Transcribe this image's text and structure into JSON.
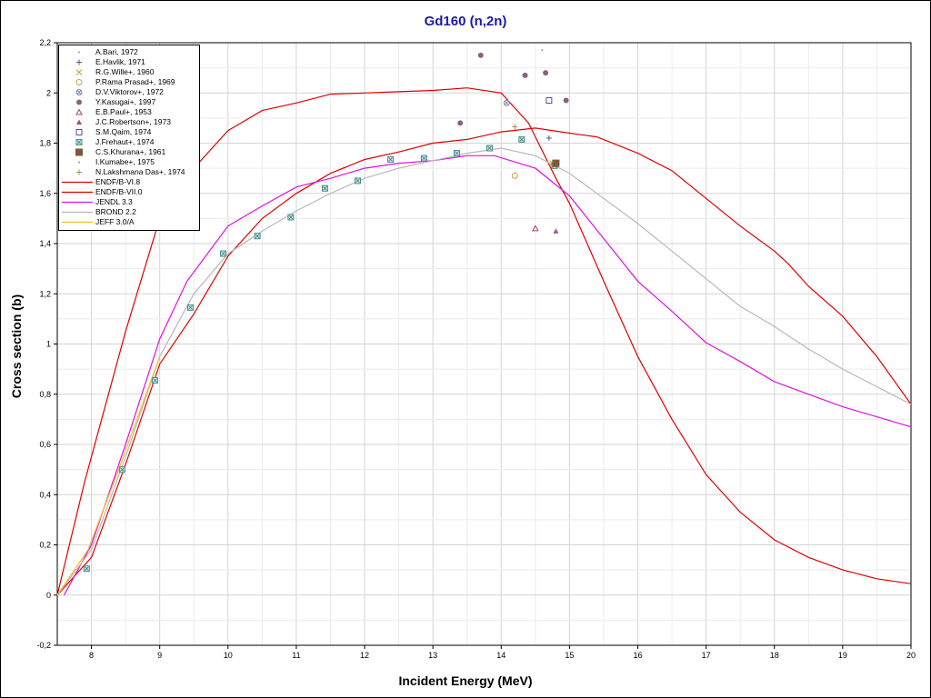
{
  "chart_data": {
    "type": "scatter",
    "title": "Gd160 (n,2n)",
    "xlabel": "Incident Energy (MeV)",
    "ylabel": "Cross section (b)",
    "xlim": [
      7.5,
      20
    ],
    "ylim": [
      -0.2,
      2.2
    ],
    "xticks": [
      8,
      9,
      10,
      11,
      12,
      13,
      14,
      15,
      16,
      17,
      18,
      19,
      20
    ],
    "yticks": [
      -0.2,
      0,
      0.2,
      0.4,
      0.6,
      0.8,
      1,
      1.2,
      1.4,
      1.6,
      1.8,
      2,
      2.2
    ],
    "decimal_separator": ",",
    "grid": true,
    "legend_position": "top-left",
    "experiments": [
      {
        "name": "A.Bari, 1972",
        "marker": "dot",
        "color": "#999999",
        "points": [
          [
            14.6,
            2.17
          ]
        ]
      },
      {
        "name": "E.Havlik, 1971",
        "marker": "plus",
        "color": "#4a5a9a",
        "points": [
          [
            14.7,
            1.82
          ]
        ]
      },
      {
        "name": "R.G.Wille+, 1960",
        "marker": "x",
        "color": "#c8a040",
        "points": [
          [
            14.75,
            1.72
          ]
        ]
      },
      {
        "name": "P.Rama Prasad+, 1969",
        "marker": "circle-open",
        "color": "#c8a040",
        "points": [
          [
            14.2,
            1.67
          ]
        ]
      },
      {
        "name": "D.V.Viktorov+, 1972",
        "marker": "circle-x",
        "color": "#8080b0",
        "points": [
          [
            14.08,
            1.96
          ]
        ]
      },
      {
        "name": "Y.Kasugai+, 1997",
        "marker": "circle-filled",
        "color": "#8a6080",
        "points": [
          [
            13.4,
            1.88
          ],
          [
            13.7,
            2.15
          ],
          [
            14.35,
            2.07
          ],
          [
            14.65,
            2.08
          ],
          [
            14.95,
            1.97
          ]
        ]
      },
      {
        "name": "E.B.Paul+, 1953",
        "marker": "triangle-open",
        "color": "#b04060",
        "points": [
          [
            14.5,
            1.46
          ]
        ]
      },
      {
        "name": "J.C.Robertson+, 1973",
        "marker": "triangle-filled",
        "color": "#9a4a8a",
        "points": [
          [
            14.8,
            1.45
          ]
        ]
      },
      {
        "name": "S.M.Qaim, 1974",
        "marker": "square-open",
        "color": "#5050a0",
        "points": [
          [
            14.7,
            1.97
          ]
        ]
      },
      {
        "name": "J.Frehaut+, 1974",
        "marker": "square-x",
        "color": "#4a8a8a",
        "points": [
          [
            7.93,
            0.105
          ],
          [
            8.45,
            0.5
          ],
          [
            8.93,
            0.855
          ],
          [
            9.45,
            1.145
          ],
          [
            9.93,
            1.36
          ],
          [
            10.43,
            1.43
          ],
          [
            10.92,
            1.505
          ],
          [
            11.42,
            1.62
          ],
          [
            11.9,
            1.65
          ],
          [
            12.38,
            1.735
          ],
          [
            12.87,
            1.74
          ],
          [
            13.35,
            1.76
          ],
          [
            13.83,
            1.78
          ],
          [
            14.3,
            1.815
          ],
          [
            14.78,
            1.71
          ]
        ]
      },
      {
        "name": "C.S.Khurana+, 1961",
        "marker": "square-filled",
        "color": "#7a5a3a",
        "points": [
          [
            14.8,
            1.72
          ]
        ]
      },
      {
        "name": "I.Kumabe+, 1975",
        "marker": "dot",
        "color": "#a08080",
        "points": [
          [
            14.8,
            1.45
          ]
        ]
      },
      {
        "name": "N.Lakshmana Das+, 1974",
        "marker": "plus",
        "color": "#b09040",
        "points": [
          [
            14.2,
            1.865
          ]
        ]
      }
    ],
    "evaluations": [
      {
        "name": "ENDF/B-VI.8",
        "color": "#e00000",
        "points": [
          [
            7.5,
            0
          ],
          [
            7.9,
            0.45
          ],
          [
            8.5,
            1.05
          ],
          [
            9,
            1.5
          ],
          [
            9.5,
            1.7
          ],
          [
            10,
            1.85
          ],
          [
            10.5,
            1.93
          ],
          [
            11,
            1.96
          ],
          [
            11.5,
            1.995
          ],
          [
            12,
            2.0
          ],
          [
            12.5,
            2.005
          ],
          [
            13,
            2.01
          ],
          [
            13.5,
            2.02
          ],
          [
            14,
            2.0
          ],
          [
            14.4,
            1.88
          ],
          [
            14.8,
            1.66
          ],
          [
            15,
            1.56
          ],
          [
            15.5,
            1.25
          ],
          [
            16,
            0.95
          ],
          [
            16.5,
            0.7
          ],
          [
            17,
            0.48
          ],
          [
            17.5,
            0.33
          ],
          [
            18,
            0.22
          ],
          [
            18.5,
            0.15
          ],
          [
            19,
            0.1
          ],
          [
            19.5,
            0.065
          ],
          [
            20,
            0.045
          ]
        ]
      },
      {
        "name": "ENDF/B-VII.0",
        "color": "#e00000",
        "points": [
          [
            7.5,
            0
          ],
          [
            8,
            0.15
          ],
          [
            8.5,
            0.52
          ],
          [
            9,
            0.92
          ],
          [
            9.5,
            1.12
          ],
          [
            10,
            1.35
          ],
          [
            10.5,
            1.5
          ],
          [
            11,
            1.6
          ],
          [
            11.5,
            1.68
          ],
          [
            12,
            1.735
          ],
          [
            12.5,
            1.765
          ],
          [
            13,
            1.8
          ],
          [
            13.5,
            1.815
          ],
          [
            14,
            1.845
          ],
          [
            14.5,
            1.86
          ],
          [
            15,
            1.84
          ],
          [
            15.4,
            1.825
          ],
          [
            16,
            1.76
          ],
          [
            16.5,
            1.69
          ],
          [
            17,
            1.58
          ],
          [
            17.5,
            1.47
          ],
          [
            18,
            1.37
          ],
          [
            18.2,
            1.32
          ],
          [
            18.5,
            1.23
          ],
          [
            19,
            1.11
          ],
          [
            19.5,
            0.95
          ],
          [
            20,
            0.76
          ]
        ]
      },
      {
        "name": "JENDL 3.3",
        "color": "#e010e0",
        "points": [
          [
            7.6,
            0
          ],
          [
            8,
            0.2
          ],
          [
            8.5,
            0.6
          ],
          [
            9,
            1.02
          ],
          [
            9.4,
            1.25
          ],
          [
            10,
            1.47
          ],
          [
            10.5,
            1.55
          ],
          [
            11,
            1.625
          ],
          [
            11.5,
            1.66
          ],
          [
            12,
            1.7
          ],
          [
            12.5,
            1.72
          ],
          [
            13,
            1.73
          ],
          [
            13.5,
            1.75
          ],
          [
            13.9,
            1.75
          ],
          [
            14.5,
            1.7
          ],
          [
            15,
            1.59
          ],
          [
            15.5,
            1.42
          ],
          [
            16,
            1.25
          ],
          [
            16.5,
            1.13
          ],
          [
            17,
            1.005
          ],
          [
            17.5,
            0.93
          ],
          [
            18,
            0.85
          ],
          [
            18.5,
            0.8
          ],
          [
            19,
            0.75
          ],
          [
            19.5,
            0.71
          ],
          [
            20,
            0.67
          ]
        ]
      },
      {
        "name": "BROND 2.2",
        "color": "#b8b8b8",
        "points": [
          [
            7.5,
            0
          ],
          [
            8,
            0.18
          ],
          [
            8.5,
            0.55
          ],
          [
            9,
            0.95
          ],
          [
            9.5,
            1.2
          ],
          [
            10,
            1.36
          ],
          [
            10.5,
            1.45
          ],
          [
            11,
            1.53
          ],
          [
            11.5,
            1.6
          ],
          [
            12,
            1.66
          ],
          [
            12.5,
            1.7
          ],
          [
            13,
            1.73
          ],
          [
            13.5,
            1.76
          ],
          [
            14,
            1.78
          ],
          [
            14.5,
            1.75
          ],
          [
            15,
            1.68
          ],
          [
            15.5,
            1.58
          ],
          [
            16,
            1.48
          ],
          [
            16.5,
            1.37
          ],
          [
            17,
            1.26
          ],
          [
            17.5,
            1.15
          ],
          [
            18,
            1.07
          ],
          [
            18.5,
            0.98
          ],
          [
            19,
            0.9
          ],
          [
            19.5,
            0.83
          ],
          [
            20,
            0.76
          ]
        ]
      },
      {
        "name": "JEFF 3.0/A",
        "color": "#e8c020",
        "points": [
          [
            7.5,
            0
          ],
          [
            7.95,
            0.18
          ],
          [
            8.4,
            0.5
          ],
          [
            9,
            0.95
          ]
        ]
      }
    ]
  }
}
